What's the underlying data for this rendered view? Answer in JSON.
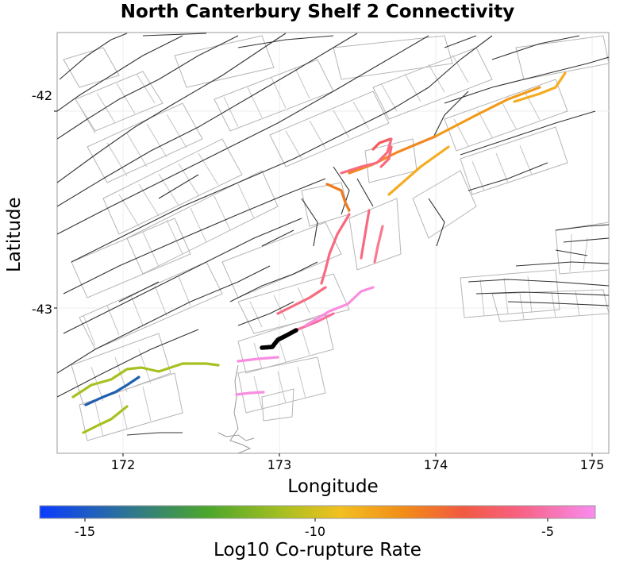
{
  "map": {
    "title": "North Canterbury Shelf 2 Connectivity",
    "x_axis_label": "Longitude",
    "y_axis_label": "Latitude",
    "x_ticks": [
      "172",
      "173",
      "174",
      "175"
    ],
    "y_ticks": [
      "-42",
      "-43"
    ],
    "colorbar_label": "Log10 Co-rupture Rate",
    "colorbar_ticks": [
      "-15",
      "-10",
      "-5"
    ],
    "colors": {
      "fault_trace": "#333333",
      "fault_outline": "#b5b5b5",
      "selected_fault": "#000000",
      "colormap_stops": [
        "#0a3cff",
        "#2a6ea0",
        "#4aa62c",
        "#a8c020",
        "#f2c020",
        "#f28a18",
        "#f25a40",
        "#f86080",
        "#f88cf0"
      ]
    }
  }
}
